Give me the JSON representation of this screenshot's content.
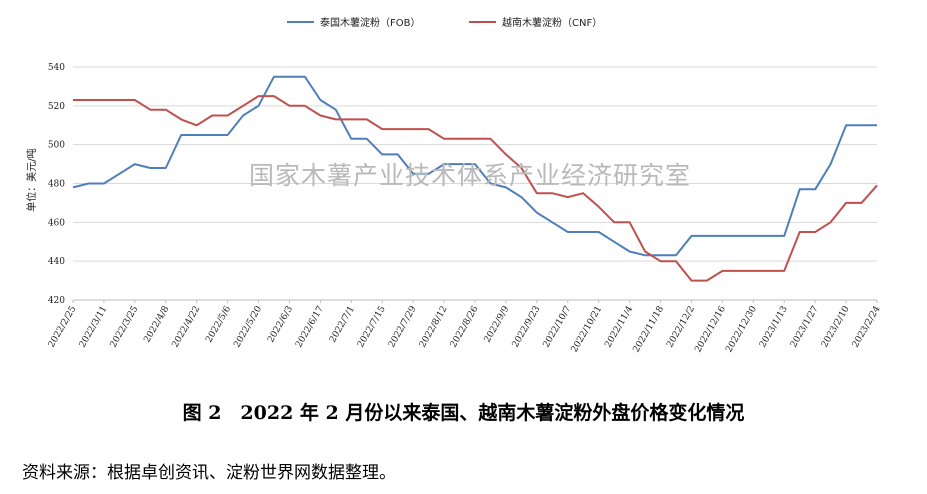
{
  "chart_data": {
    "type": "line",
    "title": "",
    "xlabel": "",
    "ylabel": "单位：美元/吨",
    "ylim": [
      420,
      540
    ],
    "yticks": [
      420,
      440,
      460,
      480,
      500,
      520,
      540
    ],
    "grid": "horizontal",
    "legend_position": "top-center",
    "x": [
      "2022/2/25",
      "2022/3/4",
      "2022/3/11",
      "2022/3/18",
      "2022/3/25",
      "2022/4/1",
      "2022/4/8",
      "2022/4/15",
      "2022/4/22",
      "2022/4/29",
      "2022/5/6",
      "2022/5/13",
      "2022/5/20",
      "2022/5/27",
      "2022/6/3",
      "2022/6/10",
      "2022/6/17",
      "2022/6/24",
      "2022/7/1",
      "2022/7/8",
      "2022/7/15",
      "2022/7/22",
      "2022/7/29",
      "2022/8/5",
      "2022/8/12",
      "2022/8/19",
      "2022/8/26",
      "2022/9/2",
      "2022/9/9",
      "2022/9/16",
      "2022/9/23",
      "2022/9/30",
      "2022/10/7",
      "2022/10/14",
      "2022/10/21",
      "2022/10/28",
      "2022/11/4",
      "2022/11/11",
      "2022/11/18",
      "2022/11/25",
      "2022/12/2",
      "2022/12/9",
      "2022/12/16",
      "2022/12/23",
      "2022/12/30",
      "2023/1/6",
      "2023/1/13",
      "2023/1/20",
      "2023/1/27",
      "2023/2/3",
      "2023/2/10",
      "2023/2/17",
      "2023/2/24"
    ],
    "x_tick_labels": [
      "2022/2/25",
      "2022/3/11",
      "2022/3/25",
      "2022/4/8",
      "2022/4/22",
      "2022/5/6",
      "2022/5/20",
      "2022/6/3",
      "2022/6/17",
      "2022/7/1",
      "2022/7/15",
      "2022/7/29",
      "2022/8/12",
      "2022/8/26",
      "2022/9/9",
      "2022/9/23",
      "2022/10/7",
      "2022/10/21",
      "2022/11/4",
      "2022/11/18",
      "2022/12/2",
      "2022/12/16",
      "2022/12/30",
      "2023/1/13",
      "2023/1/27",
      "2023/2/10",
      "2023/2/24"
    ],
    "series": [
      {
        "name": "泰国木薯淀粉（FOB）",
        "color": "#4f7fbb",
        "values": [
          478,
          480,
          480,
          485,
          490,
          488,
          488,
          505,
          505,
          505,
          505,
          515,
          520,
          535,
          535,
          535,
          523,
          518,
          503,
          503,
          495,
          495,
          485,
          485,
          490,
          490,
          490,
          480,
          478,
          473,
          465,
          460,
          455,
          455,
          455,
          450,
          445,
          443,
          443,
          443,
          453,
          453,
          453,
          453,
          453,
          453,
          453,
          477,
          477,
          490,
          510,
          510,
          510
        ]
      },
      {
        "name": "越南木薯淀粉（CNF）",
        "color": "#c0504d",
        "values": [
          523,
          523,
          523,
          523,
          523,
          518,
          518,
          513,
          510,
          515,
          515,
          520,
          525,
          525,
          520,
          520,
          515,
          513,
          513,
          513,
          508,
          508,
          508,
          508,
          503,
          503,
          503,
          503,
          495,
          488,
          475,
          475,
          473,
          475,
          468,
          460,
          460,
          445,
          440,
          440,
          430,
          430,
          435,
          435,
          435,
          435,
          435,
          455,
          455,
          460,
          470,
          470,
          479
        ]
      }
    ]
  },
  "watermark": "国家木薯产业技术体系产业经济研究室",
  "caption": "图 2　2022 年 2 月份以来泰国、越南木薯淀粉外盘价格变化情况",
  "source": "资料来源：根据卓创资讯、淀粉世界网数据整理。"
}
